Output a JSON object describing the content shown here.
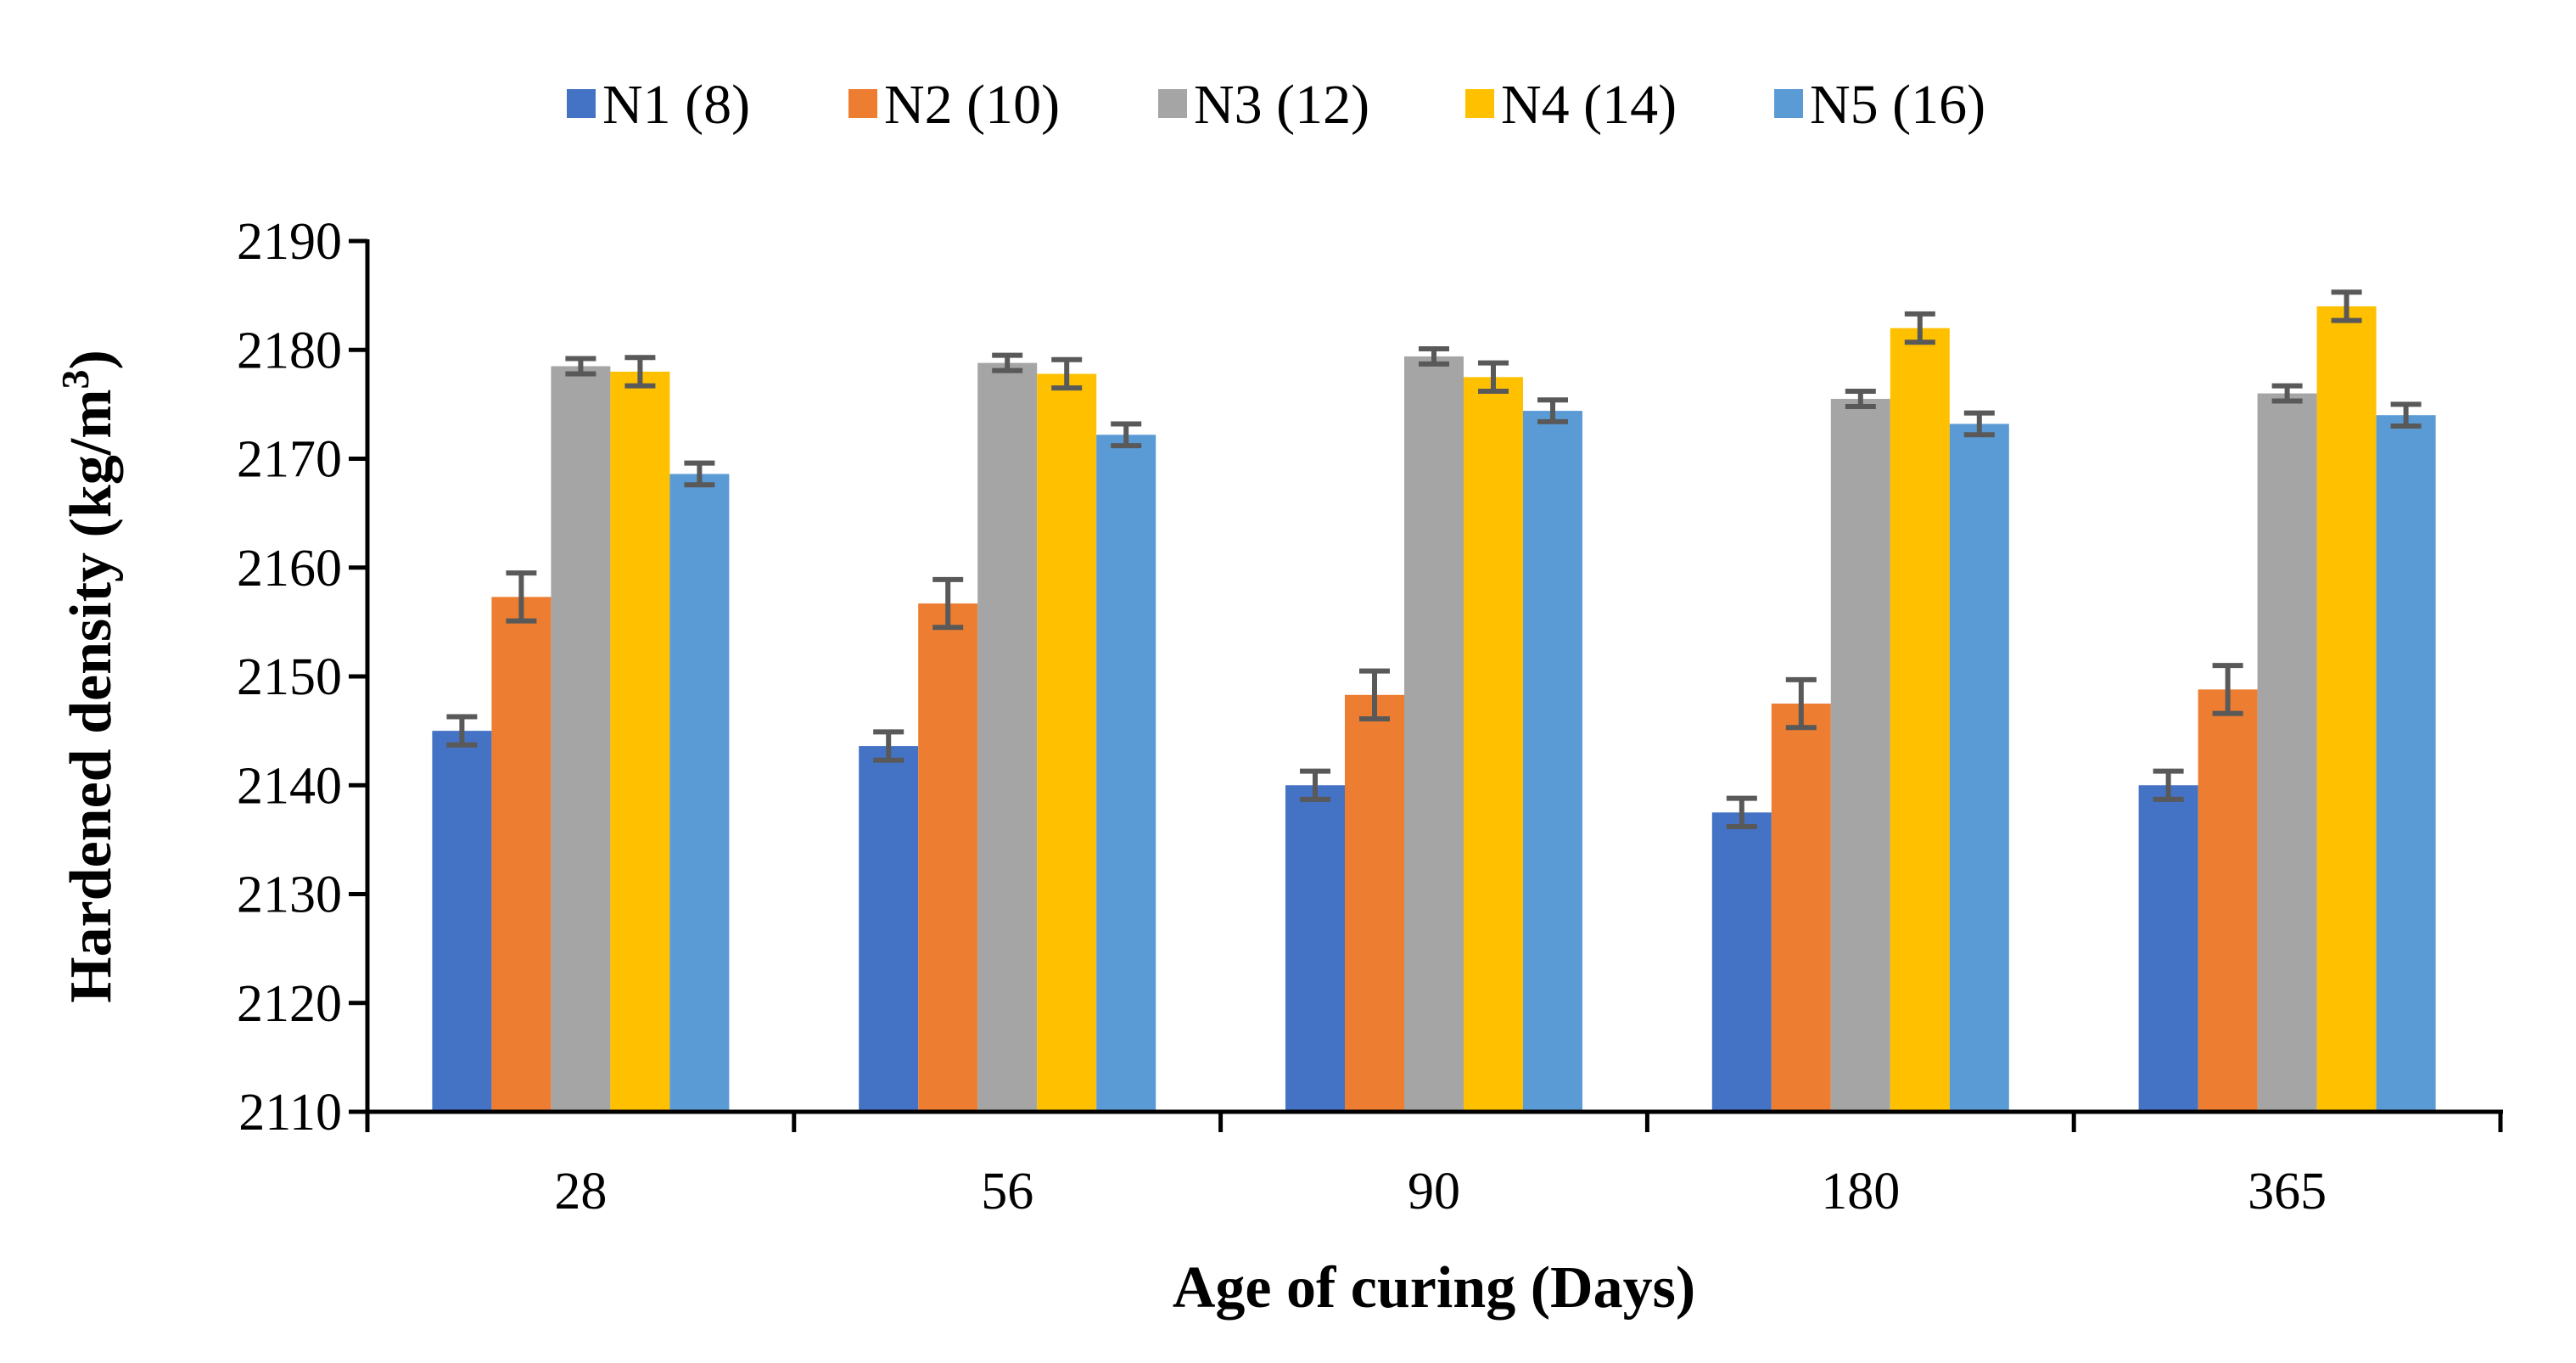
{
  "chart_data": {
    "type": "bar",
    "title": "",
    "xlabel": "Age of curing (Days)",
    "ylabel_main": "Hardened density (kg/m",
    "ylabel_sup": "3",
    "ylabel_end": ")",
    "ylim": [
      2110,
      2190
    ],
    "yticks": [
      2110,
      2120,
      2130,
      2140,
      2150,
      2160,
      2170,
      2180,
      2190
    ],
    "categories": [
      "28",
      "56",
      "90",
      "180",
      "365"
    ],
    "legend_position": "top",
    "grid": false,
    "series": [
      {
        "name": "N1 (8)",
        "color": "#4472C4",
        "values": [
          2145.0,
          2143.6,
          2140.0,
          2137.5,
          2140.0
        ],
        "errors": [
          1.3,
          1.3,
          1.3,
          1.3,
          1.3
        ]
      },
      {
        "name": "N2 (10)",
        "color": "#ED7D31",
        "values": [
          2157.3,
          2156.7,
          2148.3,
          2147.5,
          2148.8
        ],
        "errors": [
          2.2,
          2.2,
          2.2,
          2.2,
          2.2
        ]
      },
      {
        "name": "N3 (12)",
        "color": "#A5A5A5",
        "values": [
          2178.5,
          2178.8,
          2179.4,
          2175.5,
          2176.0
        ],
        "errors": [
          0.7,
          0.7,
          0.7,
          0.7,
          0.7
        ]
      },
      {
        "name": "N4 (14)",
        "color": "#FFC000",
        "values": [
          2178.0,
          2177.8,
          2177.5,
          2182.0,
          2184.0
        ],
        "errors": [
          1.3,
          1.3,
          1.3,
          1.3,
          1.3
        ]
      },
      {
        "name": "N5 (16)",
        "color": "#5B9BD5",
        "values": [
          2168.6,
          2172.2,
          2174.4,
          2173.2,
          2174.0
        ],
        "errors": [
          1.0,
          1.0,
          1.0,
          1.0,
          1.0
        ]
      }
    ]
  }
}
